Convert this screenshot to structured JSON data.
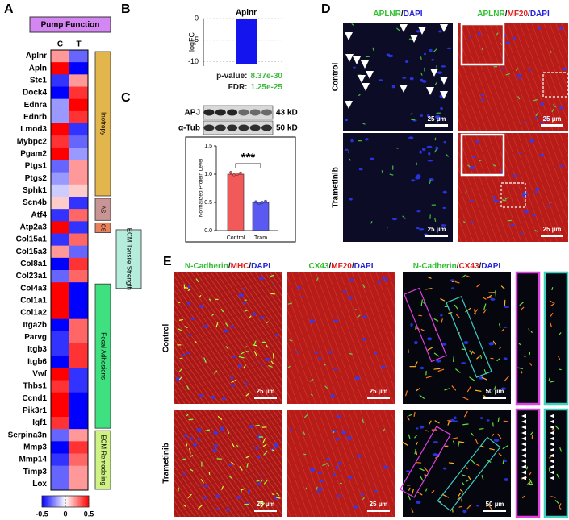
{
  "panel_labels": [
    "A",
    "B",
    "C",
    "D",
    "E"
  ],
  "chart_data": [
    {
      "type": "heatmap",
      "title": "Pump Function",
      "columns": [
        "C",
        "T"
      ],
      "rows": [
        "Aplnr",
        "Apln",
        "Stc1",
        "Dock4",
        "Ednra",
        "Ednrb",
        "Lmod3",
        "Mybpc2",
        "Pgam2",
        "Ptgs1",
        "Ptgs2",
        "Sphk1",
        "Scn4b",
        "Atf4",
        "Atp2a3",
        "Col15a1",
        "Col15a3",
        "Col8a1",
        "Col23a1",
        "Col4a3",
        "Col1a1",
        "Col1a2",
        "Itga2b",
        "Parvg",
        "Itgb3",
        "Itgb6",
        "Vwf",
        "Thbs1",
        "Ccnd1",
        "Pik3r1",
        "Igf1",
        "Serpina3n",
        "Mmp3",
        "Mmp14",
        "Timp3",
        "Lox"
      ],
      "values": [
        [
          0.2,
          -0.3
        ],
        [
          0.5,
          -0.5
        ],
        [
          -0.4,
          0.2
        ],
        [
          -0.5,
          0.4
        ],
        [
          -0.2,
          0.5
        ],
        [
          -0.2,
          0.4
        ],
        [
          0.5,
          -0.4
        ],
        [
          0.4,
          -0.3
        ],
        [
          0.5,
          -0.2
        ],
        [
          -0.3,
          0.2
        ],
        [
          -0.2,
          0.2
        ],
        [
          -0.1,
          0.1
        ],
        [
          0.1,
          -0.4
        ],
        [
          -0.4,
          0.3
        ],
        [
          0.5,
          -0.4
        ],
        [
          -0.4,
          0.3
        ],
        [
          0.2,
          -0.3
        ],
        [
          -0.5,
          0.4
        ],
        [
          -0.3,
          0.3
        ],
        [
          0.5,
          -0.5
        ],
        [
          0.5,
          -0.5
        ],
        [
          0.5,
          -0.5
        ],
        [
          -0.5,
          0.3
        ],
        [
          -0.4,
          0.3
        ],
        [
          -0.4,
          0.4
        ],
        [
          -0.5,
          0.4
        ],
        [
          0.5,
          -0.4
        ],
        [
          0.4,
          -0.4
        ],
        [
          0.5,
          -0.5
        ],
        [
          0.5,
          -0.5
        ],
        [
          0.4,
          -0.5
        ],
        [
          -0.3,
          0.2
        ],
        [
          -0.5,
          0.4
        ],
        [
          -0.4,
          0.3
        ],
        [
          -0.3,
          0.2
        ],
        [
          -0.3,
          0.2
        ]
      ],
      "clim": [
        -0.5,
        0.5
      ],
      "cticks": [
        -0.5,
        0,
        0.5
      ],
      "cmap": [
        "#0000ff",
        "#ffffff",
        "#ff0000"
      ],
      "groups": [
        {
          "label": "Inotropy",
          "color": "#e2b64c"
        },
        {
          "label": "AS",
          "color": "#c99494"
        },
        {
          "label": "CS",
          "color": "#e8825e"
        },
        {
          "label": "ECM Tensile Strength",
          "color": "#b6ecdc"
        },
        {
          "label": "Focal Adhesions",
          "color": "#3fe07f"
        },
        {
          "label": "ECM Remodeling",
          "color": "#cff285"
        }
      ]
    },
    {
      "type": "bar",
      "title": "Aplnr",
      "ylabel": "logFC",
      "values": [
        -10.5
      ],
      "color": "#1414ee",
      "ylim": [
        -11,
        0
      ],
      "yticks": [
        0,
        -5,
        -10
      ],
      "annotations": [
        {
          "label": "p-value:",
          "value": "8.37e-30"
        },
        {
          "label": "FDR:",
          "value": "1.25e-25"
        }
      ]
    },
    {
      "type": "bar",
      "ylabel": "Normalized Protein Level",
      "categories": [
        "Control",
        "Tram"
      ],
      "values": [
        1.0,
        0.5
      ],
      "colors": [
        "#f25a5a",
        "#5a5af2"
      ],
      "points": [
        [
          1.03,
          0.99,
          1.0,
          1.02
        ],
        [
          0.51,
          0.48,
          0.5,
          0.52
        ]
      ],
      "ylim": [
        0,
        1.5
      ],
      "yticks": [
        {
          "value": 0,
          "label": "0.0"
        },
        {
          "value": 0.5,
          "label": "0.5"
        },
        {
          "value": 1,
          "label": "1.0"
        },
        {
          "value": 1.5,
          "label": "1.5"
        }
      ],
      "significance": "***"
    }
  ],
  "blot": {
    "rows": [
      {
        "protein": "APJ",
        "size": "43 kD"
      },
      {
        "protein": "α-Tub",
        "size": "50 kD"
      }
    ]
  },
  "panel_d": {
    "headers": [
      [
        {
          "text": "APLNR",
          "color": "#2fbf2f"
        },
        {
          "text": "/",
          "color": "#111111"
        },
        {
          "text": "DAPI",
          "color": "#2323dd"
        }
      ],
      [
        {
          "text": "APLNR",
          "color": "#2fbf2f"
        },
        {
          "text": "/",
          "color": "#111111"
        },
        {
          "text": "MF20",
          "color": "#e02020"
        },
        {
          "text": "/",
          "color": "#111111"
        },
        {
          "text": "DAPI",
          "color": "#2323dd"
        }
      ]
    ],
    "rows": [
      "Control",
      "Trametinib"
    ],
    "scale_bars": [
      [
        "25 µm",
        "25 µm"
      ],
      [
        "25 µm",
        "25 µm"
      ]
    ]
  },
  "panel_e": {
    "headers": [
      [
        {
          "text": "N-Cadherin",
          "color": "#2fbf2f"
        },
        {
          "text": "/",
          "color": "#111111"
        },
        {
          "text": "MHC",
          "color": "#e02020"
        },
        {
          "text": "/",
          "color": "#111111"
        },
        {
          "text": "DAPI",
          "color": "#2323dd"
        }
      ],
      [
        {
          "text": "CX43",
          "color": "#2fbf2f"
        },
        {
          "text": "/",
          "color": "#111111"
        },
        {
          "text": "MF20",
          "color": "#e02020"
        },
        {
          "text": "/",
          "color": "#111111"
        },
        {
          "text": "DAPI",
          "color": "#2323dd"
        }
      ],
      [
        {
          "text": "N-Cadherin",
          "color": "#2fbf2f"
        },
        {
          "text": "/",
          "color": "#111111"
        },
        {
          "text": "CX43",
          "color": "#e02020"
        },
        {
          "text": "/",
          "color": "#111111"
        },
        {
          "text": "DAPI",
          "color": "#2323dd"
        }
      ]
    ],
    "rows": [
      "Control",
      "Trametinib"
    ],
    "scale_bars": [
      [
        "25 µm",
        "25 µm",
        "50 µm"
      ],
      [
        "25 µm",
        "25 µm",
        "50 µm"
      ]
    ]
  }
}
